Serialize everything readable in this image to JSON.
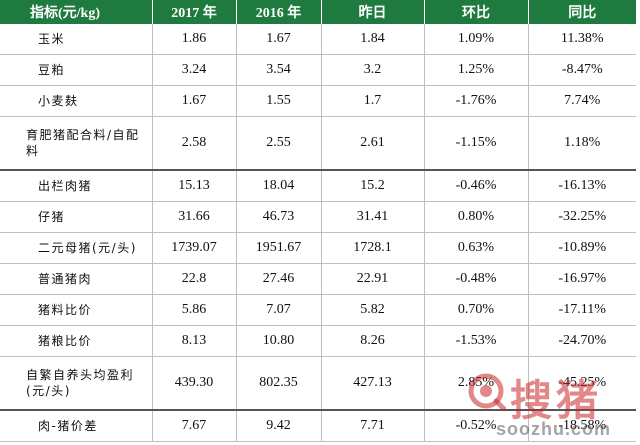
{
  "header": [
    "指标(元/kg)",
    "2017 年",
    "2016 年",
    "昨日",
    "环比",
    "同比"
  ],
  "rows": [
    [
      "玉米",
      "1.86",
      "1.67",
      "1.84",
      "1.09%",
      "11.38%"
    ],
    [
      "豆粕",
      "3.24",
      "3.54",
      "3.2",
      "1.25%",
      "-8.47%"
    ],
    [
      "小麦麸",
      "1.67",
      "1.55",
      "1.7",
      "-1.76%",
      "7.74%"
    ],
    [
      "育肥猪配合料/自配料",
      "2.58",
      "2.55",
      "2.61",
      "-1.15%",
      "1.18%"
    ],
    [
      "出栏肉猪",
      "15.13",
      "18.04",
      "15.2",
      "-0.46%",
      "-16.13%"
    ],
    [
      "仔猪",
      "31.66",
      "46.73",
      "31.41",
      "0.80%",
      "-32.25%"
    ],
    [
      "二元母猪(元/头)",
      "1739.07",
      "1951.67",
      "1728.1",
      "0.63%",
      "-10.89%"
    ],
    [
      "普通猪肉",
      "22.8",
      "27.46",
      "22.91",
      "-0.48%",
      "-16.97%"
    ],
    [
      "猪料比价",
      "5.86",
      "7.07",
      "5.82",
      "0.70%",
      "-17.11%"
    ],
    [
      "猪粮比价",
      "8.13",
      "10.80",
      "8.26",
      "-1.53%",
      "-24.70%"
    ],
    [
      "自繁自养头均盈利(元/头)",
      "439.30",
      "802.35",
      "427.13",
      "2.85%",
      "-45.25%"
    ],
    [
      "肉-猪价差",
      "7.67",
      "9.42",
      "7.71",
      "-0.52%",
      "-18.58%"
    ]
  ],
  "watermark": {
    "brand": "搜猪",
    "url": "soozhu.com"
  },
  "colors": {
    "header_bg": "#1f7a3f",
    "header_text": "#ffffff",
    "watermark_red": "#c82828"
  }
}
